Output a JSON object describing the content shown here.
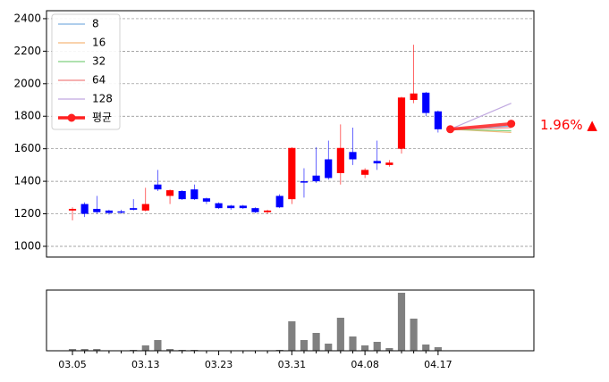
{
  "chart_data": {
    "type": "candlestick",
    "categories": [
      "03.05",
      null,
      null,
      null,
      null,
      null,
      "03.13",
      null,
      null,
      null,
      null,
      null,
      "03.23",
      null,
      null,
      null,
      null,
      null,
      "03.31",
      null,
      null,
      null,
      null,
      null,
      "04.08",
      null,
      null,
      null,
      null,
      null,
      "04.17"
    ],
    "open": [
      1220,
      1260,
      1230,
      1220,
      1215,
      1235,
      1220,
      1380,
      1310,
      1340,
      1350,
      1295,
      1265,
      1250,
      1250,
      1235,
      1210,
      1310,
      1290,
      1400,
      1435,
      1535,
      1450,
      1580,
      1440,
      1525,
      1500,
      1600,
      1900,
      1945,
      1830
    ],
    "high": [
      1240,
      1270,
      1310,
      1225,
      1225,
      1290,
      1360,
      1470,
      1350,
      1345,
      1380,
      1300,
      1270,
      1255,
      1255,
      1240,
      1225,
      1320,
      1610,
      1480,
      1610,
      1650,
      1750,
      1730,
      1480,
      1650,
      1530,
      1920,
      2240,
      1950,
      1835
    ],
    "low": [
      1160,
      1180,
      1200,
      1195,
      1200,
      1220,
      1215,
      1340,
      1260,
      1285,
      1285,
      1260,
      1230,
      1225,
      1230,
      1205,
      1200,
      1235,
      1260,
      1300,
      1390,
      1410,
      1380,
      1500,
      1420,
      1470,
      1490,
      1570,
      1880,
      1800,
      1700
    ],
    "close": [
      1230,
      1200,
      1210,
      1205,
      1210,
      1225,
      1260,
      1350,
      1345,
      1290,
      1290,
      1275,
      1235,
      1235,
      1235,
      1210,
      1220,
      1240,
      1605,
      1395,
      1400,
      1420,
      1605,
      1535,
      1470,
      1510,
      1515,
      1915,
      1940,
      1820,
      1720
    ],
    "up_color": "#ff0000",
    "down_color": "#0000ff",
    "xlim": [
      -2.13,
      37.86
    ],
    "ylim": [
      934,
      2449
    ],
    "yticks": [
      1000,
      1200,
      1400,
      1600,
      1800,
      2000,
      2200,
      2400
    ],
    "grid": true,
    "legend": "upper left",
    "forecast": {
      "x": [
        31,
        36
      ],
      "series": [
        {
          "name": "8",
          "color": "#7fb0e0",
          "values": [
            1720,
            1740
          ]
        },
        {
          "name": "16",
          "color": "#f5b87a",
          "values": [
            1720,
            1700
          ]
        },
        {
          "name": "32",
          "color": "#7fd17f",
          "values": [
            1720,
            1710
          ]
        },
        {
          "name": "64",
          "color": "#f08080",
          "values": [
            1720,
            1730
          ]
        },
        {
          "name": "128",
          "color": "#c0a8e0",
          "values": [
            1720,
            1880
          ]
        },
        {
          "name": "평균",
          "color": "#ff2020",
          "values": [
            1720,
            1754
          ]
        }
      ]
    },
    "annotation": "1.96% ▲",
    "volume": {
      "color": "#808080",
      "ylim": [
        0,
        68
      ],
      "values": [
        2,
        2,
        2,
        0,
        0,
        1,
        6,
        12,
        2,
        1,
        1,
        0,
        0,
        0,
        0,
        0,
        0,
        1,
        33,
        12,
        20,
        8,
        37,
        16,
        6,
        10,
        3,
        65,
        36,
        7,
        4
      ]
    }
  }
}
